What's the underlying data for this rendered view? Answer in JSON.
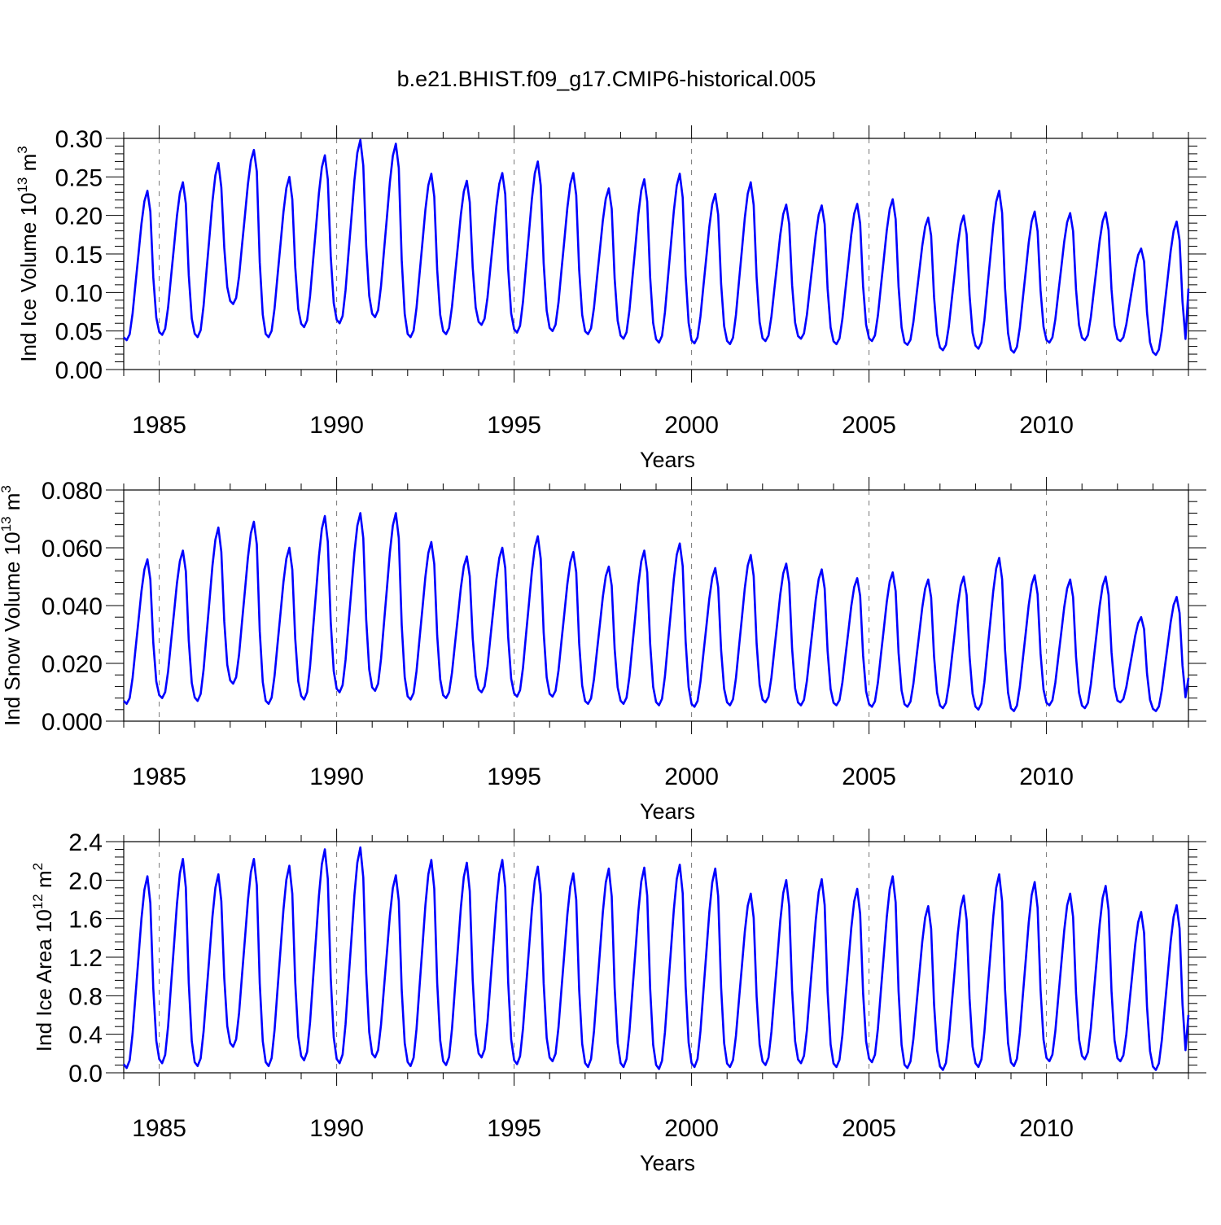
{
  "figure": {
    "title": "b.e21.BHIST.f09_g17.CMIP6-historical.005"
  },
  "colors": {
    "series": "#0000ff",
    "frame": "#000000",
    "grid": "#777777"
  },
  "chart_data": [
    {
      "type": "line",
      "ylabel": "Ind Ice Volume 10",
      "ylabel_exp": "13",
      "ylabel_unit": " m",
      "ylabel_unit_exp": "3",
      "xlabel": "Years",
      "xlim": [
        1984.0,
        2014.0
      ],
      "ylim": [
        0.0,
        0.3
      ],
      "yticks": [
        "0.00",
        "0.05",
        "0.10",
        "0.15",
        "0.20",
        "0.25",
        "0.30"
      ],
      "ytick_values": [
        0.0,
        0.05,
        0.1,
        0.15,
        0.2,
        0.25,
        0.3
      ],
      "xticks": [
        "1985",
        "1990",
        "1995",
        "2000",
        "2005",
        "2010"
      ],
      "xtick_values": [
        1985,
        1990,
        1995,
        2000,
        2005,
        2010
      ],
      "grid": "vertical dashed at major x ticks",
      "x_start": 1984.0,
      "x_step": "monthly",
      "annual": [
        {
          "min": 0.038,
          "max": 0.232,
          "late": 0.12
        },
        {
          "min": 0.045,
          "max": 0.243,
          "late": 0.12
        },
        {
          "min": 0.042,
          "max": 0.268,
          "late": 0.1
        },
        {
          "min": 0.085,
          "max": 0.285,
          "late": 0.09
        },
        {
          "min": 0.042,
          "max": 0.25,
          "late": 0.1
        },
        {
          "min": 0.055,
          "max": 0.278,
          "late": 0.1
        },
        {
          "min": 0.06,
          "max": 0.298,
          "late": 0.08
        },
        {
          "min": 0.068,
          "max": 0.293,
          "late": 0.08
        },
        {
          "min": 0.042,
          "max": 0.254,
          "late": 0.08
        },
        {
          "min": 0.046,
          "max": 0.245,
          "late": 0.08
        },
        {
          "min": 0.058,
          "max": 0.255,
          "late": 0.08
        },
        {
          "min": 0.048,
          "max": 0.27,
          "late": 0.07
        },
        {
          "min": 0.05,
          "max": 0.255,
          "late": 0.08
        },
        {
          "min": 0.046,
          "max": 0.235,
          "late": 0.07
        },
        {
          "min": 0.04,
          "max": 0.247,
          "late": 0.08
        },
        {
          "min": 0.035,
          "max": 0.254,
          "late": 0.07
        },
        {
          "min": 0.034,
          "max": 0.228,
          "late": 0.06
        },
        {
          "min": 0.033,
          "max": 0.243,
          "late": 0.06
        },
        {
          "min": 0.037,
          "max": 0.214,
          "late": 0.06
        },
        {
          "min": 0.04,
          "max": 0.213,
          "late": 0.06
        },
        {
          "min": 0.033,
          "max": 0.215,
          "late": 0.06
        },
        {
          "min": 0.037,
          "max": 0.221,
          "late": 0.06
        },
        {
          "min": 0.032,
          "max": 0.197,
          "late": 0.05
        },
        {
          "min": 0.025,
          "max": 0.2,
          "late": 0.05
        },
        {
          "min": 0.027,
          "max": 0.232,
          "late": 0.05
        },
        {
          "min": 0.022,
          "max": 0.205,
          "late": 0.05
        },
        {
          "min": 0.035,
          "max": 0.203,
          "late": 0.05
        },
        {
          "min": 0.038,
          "max": 0.204,
          "late": 0.05
        },
        {
          "min": 0.037,
          "max": 0.157,
          "late": 0.04
        },
        {
          "min": 0.019,
          "max": 0.192,
          "late": 0.105
        }
      ]
    },
    {
      "type": "line",
      "ylabel": "Ind Snow Volume 10",
      "ylabel_exp": "13",
      "ylabel_unit": " m",
      "ylabel_unit_exp": "3",
      "xlabel": "Years",
      "xlim": [
        1984.0,
        2014.0
      ],
      "ylim": [
        0.0,
        0.08
      ],
      "yticks": [
        "0.000",
        "0.020",
        "0.040",
        "0.060",
        "0.080"
      ],
      "ytick_values": [
        0.0,
        0.02,
        0.04,
        0.06,
        0.08
      ],
      "xticks": [
        "1985",
        "1990",
        "1995",
        "2000",
        "2005",
        "2010"
      ],
      "xtick_values": [
        1985,
        1990,
        1995,
        2000,
        2005,
        2010
      ],
      "grid": "vertical dashed at major x ticks",
      "x_start": 1984.0,
      "x_step": "monthly",
      "annual": [
        {
          "min": 0.006,
          "max": 0.056,
          "late": 0.03
        },
        {
          "min": 0.008,
          "max": 0.059,
          "late": 0.03
        },
        {
          "min": 0.007,
          "max": 0.067,
          "late": 0.025
        },
        {
          "min": 0.013,
          "max": 0.069,
          "late": 0.02
        },
        {
          "min": 0.006,
          "max": 0.06,
          "late": 0.02
        },
        {
          "min": 0.0075,
          "max": 0.071,
          "late": 0.02
        },
        {
          "min": 0.01,
          "max": 0.072,
          "late": 0.02
        },
        {
          "min": 0.0105,
          "max": 0.072,
          "late": 0.02
        },
        {
          "min": 0.0075,
          "max": 0.062,
          "late": 0.02
        },
        {
          "min": 0.008,
          "max": 0.057,
          "late": 0.02
        },
        {
          "min": 0.01,
          "max": 0.06,
          "late": 0.02
        },
        {
          "min": 0.0085,
          "max": 0.064,
          "late": 0.02
        },
        {
          "min": 0.0085,
          "max": 0.0585,
          "late": 0.02
        },
        {
          "min": 0.006,
          "max": 0.0535,
          "late": 0.02
        },
        {
          "min": 0.006,
          "max": 0.059,
          "late": 0.02
        },
        {
          "min": 0.0055,
          "max": 0.0615,
          "late": 0.015
        },
        {
          "min": 0.005,
          "max": 0.053,
          "late": 0.015
        },
        {
          "min": 0.0055,
          "max": 0.0575,
          "late": 0.015
        },
        {
          "min": 0.0065,
          "max": 0.0545,
          "late": 0.015
        },
        {
          "min": 0.0055,
          "max": 0.0525,
          "late": 0.015
        },
        {
          "min": 0.0055,
          "max": 0.0495,
          "late": 0.015
        },
        {
          "min": 0.005,
          "max": 0.0515,
          "late": 0.015
        },
        {
          "min": 0.005,
          "max": 0.049,
          "late": 0.015
        },
        {
          "min": 0.0045,
          "max": 0.05,
          "late": 0.015
        },
        {
          "min": 0.004,
          "max": 0.0565,
          "late": 0.015
        },
        {
          "min": 0.0035,
          "max": 0.0505,
          "late": 0.015
        },
        {
          "min": 0.0055,
          "max": 0.049,
          "late": 0.015
        },
        {
          "min": 0.0045,
          "max": 0.05,
          "late": 0.015
        },
        {
          "min": 0.0065,
          "max": 0.036,
          "late": 0.012
        },
        {
          "min": 0.0035,
          "max": 0.043,
          "late": 0.015
        }
      ]
    },
    {
      "type": "line",
      "ylabel": "Ind Ice Area 10",
      "ylabel_exp": "12",
      "ylabel_unit": " m",
      "ylabel_unit_exp": "2",
      "xlabel": "Years",
      "xlim": [
        1984.0,
        2014.0
      ],
      "ylim": [
        0.0,
        2.4
      ],
      "yticks": [
        "0.0",
        "0.4",
        "0.8",
        "1.2",
        "1.6",
        "2.0",
        "2.4"
      ],
      "ytick_values": [
        0.0,
        0.4,
        0.8,
        1.2,
        1.6,
        2.0,
        2.4
      ],
      "xticks": [
        "1985",
        "1990",
        "1995",
        "2000",
        "2005",
        "2010"
      ],
      "xtick_values": [
        1985,
        1990,
        1995,
        2000,
        2005,
        2010
      ],
      "grid": "vertical dashed at major x ticks",
      "x_start": 1984.0,
      "x_step": "monthly",
      "annual": [
        {
          "min": 0.05,
          "max": 2.04,
          "late": 0.3
        },
        {
          "min": 0.1,
          "max": 2.22,
          "late": 0.3
        },
        {
          "min": 0.07,
          "max": 2.06,
          "late": 0.3
        },
        {
          "min": 0.27,
          "max": 2.22,
          "late": 0.3
        },
        {
          "min": 0.07,
          "max": 2.15,
          "late": 0.3
        },
        {
          "min": 0.13,
          "max": 2.32,
          "late": 0.3
        },
        {
          "min": 0.1,
          "max": 2.34,
          "late": 0.3
        },
        {
          "min": 0.16,
          "max": 2.05,
          "late": 0.3
        },
        {
          "min": 0.07,
          "max": 2.21,
          "late": 0.3
        },
        {
          "min": 0.08,
          "max": 2.18,
          "late": 0.3
        },
        {
          "min": 0.16,
          "max": 2.21,
          "late": 0.3
        },
        {
          "min": 0.09,
          "max": 2.14,
          "late": 0.3
        },
        {
          "min": 0.12,
          "max": 2.07,
          "late": 0.3
        },
        {
          "min": 0.06,
          "max": 2.12,
          "late": 0.3
        },
        {
          "min": 0.06,
          "max": 2.13,
          "late": 0.3
        },
        {
          "min": 0.04,
          "max": 2.16,
          "late": 0.3
        },
        {
          "min": 0.06,
          "max": 2.12,
          "late": 0.3
        },
        {
          "min": 0.06,
          "max": 1.86,
          "late": 0.3
        },
        {
          "min": 0.08,
          "max": 2.0,
          "late": 0.3
        },
        {
          "min": 0.1,
          "max": 2.01,
          "late": 0.3
        },
        {
          "min": 0.06,
          "max": 1.91,
          "late": 0.3
        },
        {
          "min": 0.11,
          "max": 2.04,
          "late": 0.3
        },
        {
          "min": 0.05,
          "max": 1.73,
          "late": 0.3
        },
        {
          "min": 0.03,
          "max": 1.84,
          "late": 0.3
        },
        {
          "min": 0.06,
          "max": 2.06,
          "late": 0.3
        },
        {
          "min": 0.07,
          "max": 1.98,
          "late": 0.3
        },
        {
          "min": 0.12,
          "max": 1.86,
          "late": 0.3
        },
        {
          "min": 0.14,
          "max": 1.94,
          "late": 0.3
        },
        {
          "min": 0.12,
          "max": 1.67,
          "late": 0.3
        },
        {
          "min": 0.03,
          "max": 1.74,
          "late": 0.6
        }
      ]
    }
  ]
}
